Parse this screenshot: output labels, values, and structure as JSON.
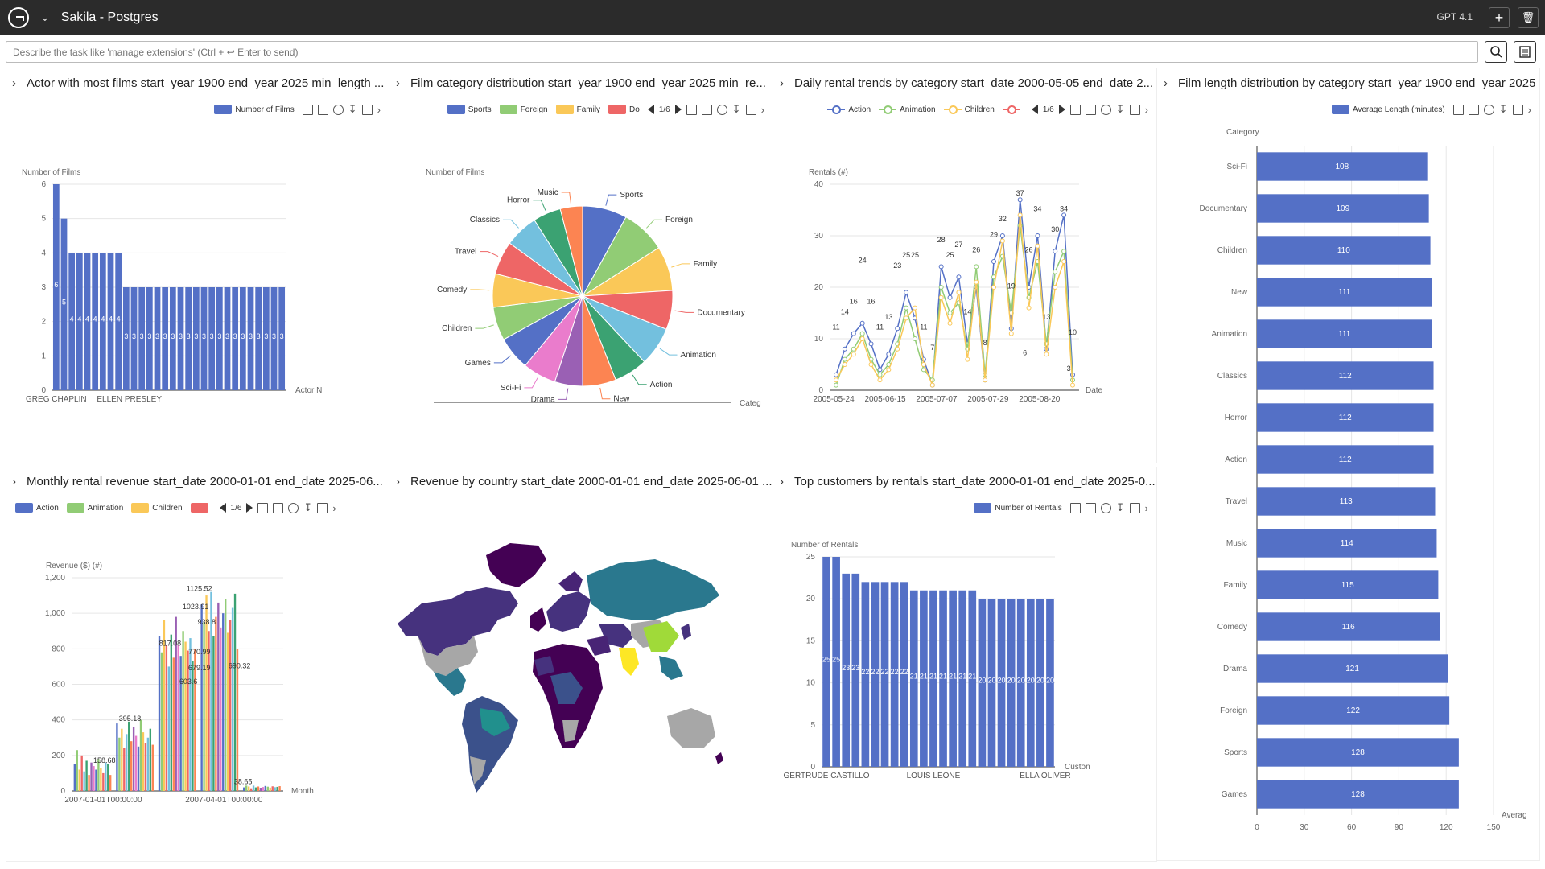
{
  "app": {
    "title": "Sakila - Postgres",
    "model": "GPT 4.1"
  },
  "command": {
    "placeholder": "Describe the task like 'manage extensions' (Ctrl + ↩ Enter to send)"
  },
  "panels": [
    {
      "title": "Actor with most films start_year 1900 end_year 2025 min_length ...",
      "legend": [
        "Number of Films"
      ]
    },
    {
      "title": "Film category distribution start_year 1900 end_year 2025 min_re...",
      "legend": [
        "Sports",
        "Foreign",
        "Family",
        "Do"
      ],
      "pager": "1/6"
    },
    {
      "title": "Daily rental trends by category start_date 2000-05-05 end_date 2...",
      "legend": [
        "Action",
        "Animation",
        "Children",
        ""
      ],
      "pager": "1/6"
    },
    {
      "title": "Film length distribution by category start_year 1900 end_year 2025",
      "legend": [
        "Average Length (minutes)"
      ]
    },
    {
      "title": "Monthly rental revenue start_date 2000-01-01 end_date 2025-06...",
      "legend": [
        "Action",
        "Animation",
        "Children",
        ""
      ],
      "pager": "1/6"
    },
    {
      "title": "Revenue by country start_date 2000-01-01 end_date 2025-06-01 ...",
      "legend": []
    },
    {
      "title": "Top customers by rentals start_date 2000-01-01 end_date 2025-0...",
      "legend": [
        "Number of Rentals"
      ]
    }
  ],
  "colors": {
    "blue": "#5470c6",
    "green": "#91cc75",
    "yellow": "#fac858",
    "red": "#ee6666",
    "cyan": "#73c0de",
    "teal": "#3ba272",
    "orange": "#fc8452",
    "purple": "#9a60b4",
    "pink": "#ea7ccc"
  },
  "chart_data": [
    {
      "type": "bar",
      "ylabel": "Number of Films",
      "xlabel": "Actor N",
      "ylim": [
        0,
        6
      ],
      "yticks": [
        "0",
        "1",
        "2",
        "3",
        "4",
        "5",
        "6"
      ],
      "xticklabels": [
        "GREG CHAPLIN",
        "ELLEN PRESLEY"
      ],
      "values": [
        6,
        5,
        4,
        4,
        4,
        4,
        4,
        4,
        4,
        3,
        3,
        3,
        3,
        3,
        3,
        3,
        3,
        3,
        3,
        3,
        3,
        3,
        3,
        3,
        3,
        3,
        3,
        3,
        3,
        3
      ],
      "labels": [
        "6",
        "5",
        "4",
        "4",
        "4",
        "4",
        "4",
        "4",
        "4",
        "3",
        "3",
        "3",
        "3",
        "3",
        "3",
        "3",
        "3",
        "3",
        "3",
        "3",
        "3",
        "3",
        "3",
        "3",
        "3",
        "3",
        "3",
        "3",
        "3",
        "3"
      ]
    },
    {
      "type": "pie",
      "ylabel": "Number of Films",
      "xlabel": "Categ",
      "categories": [
        "Sports",
        "Foreign",
        "Family",
        "Documentary",
        "Animation",
        "Action",
        "New",
        "Drama",
        "Sci-Fi",
        "Games",
        "Children",
        "Comedy",
        "Travel",
        "Classics",
        "Horror",
        "Music"
      ],
      "values": [
        8,
        8,
        8,
        7,
        7,
        6,
        6,
        5,
        6,
        6,
        6,
        6,
        6,
        6,
        5,
        4
      ]
    },
    {
      "type": "line",
      "ylabel": "Rentals (#)",
      "xlabel": "Date",
      "ylim": [
        0,
        40
      ],
      "yticks": [
        "0",
        "10",
        "20",
        "30",
        "40"
      ],
      "xticklabels": [
        "2005-05-24",
        "2005-06-15",
        "2005-07-07",
        "2005-07-29",
        "2005-08-20"
      ],
      "series": [
        {
          "name": "Action",
          "values": [
            3,
            8,
            11,
            13,
            9,
            4,
            7,
            12,
            19,
            14,
            6,
            1,
            24,
            18,
            22,
            9,
            20,
            2,
            25,
            30,
            12,
            37,
            20,
            30,
            8,
            27,
            34,
            3
          ]
        },
        {
          "name": "Animation",
          "values": [
            1,
            6,
            8,
            11,
            6,
            3,
            5,
            9,
            16,
            10,
            4,
            2,
            20,
            15,
            17,
            8,
            24,
            3,
            22,
            26,
            15,
            32,
            18,
            25,
            9,
            23,
            27,
            2
          ]
        },
        {
          "name": "Children",
          "values": [
            2,
            5,
            7,
            10,
            5,
            2,
            4,
            8,
            14,
            16,
            5,
            1,
            18,
            13,
            19,
            6,
            21,
            2,
            20,
            29,
            11,
            34,
            16,
            28,
            7,
            20,
            25,
            1
          ]
        }
      ],
      "point_labels": [
        "37",
        "34",
        "32",
        "34",
        "30",
        "29",
        "28",
        "27",
        "26",
        "26",
        "25",
        "25",
        "25",
        "24",
        "23",
        "19",
        "16",
        "16",
        "14",
        "14",
        "13",
        "13",
        "11",
        "11",
        "11",
        "10",
        "8",
        "7",
        "6",
        "3"
      ]
    },
    {
      "type": "bar",
      "orientation": "horizontal",
      "ylabel": "Category",
      "xlabel": "Averag",
      "xlim": [
        0,
        150
      ],
      "xticks": [
        "0",
        "30",
        "60",
        "90",
        "120",
        "150"
      ],
      "categories": [
        "Sci-Fi",
        "Documentary",
        "Children",
        "New",
        "Animation",
        "Classics",
        "Horror",
        "Action",
        "Travel",
        "Music",
        "Family",
        "Comedy",
        "Drama",
        "Foreign",
        "Sports",
        "Games"
      ],
      "values": [
        108,
        109,
        110,
        111,
        111,
        112,
        112,
        112,
        113,
        114,
        115,
        116,
        121,
        122,
        128,
        128
      ],
      "labels": [
        "108",
        "109",
        "110",
        "111",
        "111",
        "112",
        "112",
        "112",
        "113",
        "114",
        "115",
        "116",
        "121",
        "122",
        "128",
        "128"
      ]
    },
    {
      "type": "bar",
      "ylabel": "Revenue ($) (#)",
      "xlabel": "Month",
      "ylim": [
        0,
        1200
      ],
      "yticks": [
        "0",
        "200",
        "400",
        "600",
        "800",
        "1,000",
        "1,200"
      ],
      "xticklabels": [
        "2007-01-01T00:00:00",
        "2007-04-01T00:00:00"
      ],
      "groups": [
        [
          150,
          230,
          120,
          200,
          110,
          170,
          90,
          160,
          140,
          120,
          180,
          130,
          100,
          160,
          150,
          90
        ],
        [
          380,
          300,
          350,
          240,
          320,
          390,
          280,
          360,
          310,
          250,
          400,
          330,
          270,
          300,
          350,
          260
        ],
        [
          870,
          780,
          960,
          820,
          700,
          880,
          750,
          980,
          820,
          760,
          900,
          840,
          790,
          860,
          730,
          800
        ],
        [
          1050,
          950,
          1100,
          900,
          1120,
          870,
          980,
          1060,
          920,
          1000,
          1080,
          890,
          960,
          1030,
          1110,
          800
        ],
        [
          20,
          30,
          25,
          15,
          30,
          20,
          25,
          18,
          22,
          28,
          24,
          19,
          26,
          21,
          23,
          27
        ]
      ],
      "labels": [
        "1125.52",
        "1023.91",
        "938.8",
        "817.08",
        "770.99",
        "679.19",
        "690.32",
        "603.6",
        "395.18",
        "158.68",
        "38.65"
      ]
    },
    {
      "type": "map",
      "title": ""
    },
    {
      "type": "bar",
      "ylabel": "Number of Rentals",
      "xlabel": "Custon",
      "ylim": [
        0,
        25
      ],
      "yticks": [
        "0",
        "5",
        "10",
        "15",
        "20",
        "25"
      ],
      "xticklabels": [
        "GERTRUDE CASTILLO",
        "LOUIS LEONE",
        "ELLA OLIVER"
      ],
      "values": [
        25,
        25,
        23,
        23,
        22,
        22,
        22,
        22,
        22,
        21,
        21,
        21,
        21,
        21,
        21,
        21,
        20,
        20,
        20,
        20,
        20,
        20,
        20,
        20
      ],
      "labels": [
        "25",
        "25",
        "23",
        "23",
        "22",
        "22",
        "22",
        "22",
        "22",
        "21",
        "21",
        "21",
        "21",
        "21",
        "21",
        "21",
        "20",
        "20",
        "20",
        "20",
        "20",
        "20",
        "20",
        "20"
      ]
    }
  ]
}
